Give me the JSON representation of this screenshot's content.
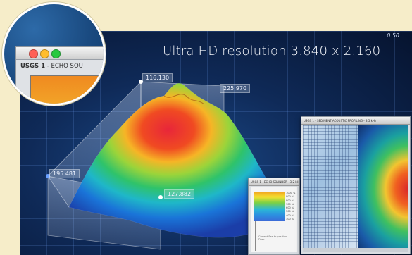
{
  "headline": "Ultra HD resolution 3.840 x 2.160",
  "scale_top_right": "0.50",
  "callouts": {
    "peak_left": "116.130",
    "peak_right": "225.970",
    "left": "195.481",
    "front": "127.882"
  },
  "lens_window": {
    "title_bold": "USGS 1",
    "title_rest": " - ECHO SOU"
  },
  "echo_window": {
    "title": "USGS 1 - ECHO SOUNDER - 3.2 kHz",
    "ticks": [
      "1000 %",
      "900 %",
      "800 %",
      "700 %",
      "600 %",
      "500 %",
      "400 %",
      "300 %"
    ],
    "caption": "Current Sea to position Desc"
  },
  "profile_window": {
    "title": "USGS 1 - SEDIMENT ACOUSTIC PROFILING - 3.5 kHz"
  },
  "colors": {
    "background": "#f6edc9",
    "stage_dark": "#06132e",
    "stage_blue": "#1b4a8a",
    "traffic_red": "#ff5f56",
    "traffic_yellow": "#ffbd2e",
    "traffic_green": "#27c93f"
  }
}
